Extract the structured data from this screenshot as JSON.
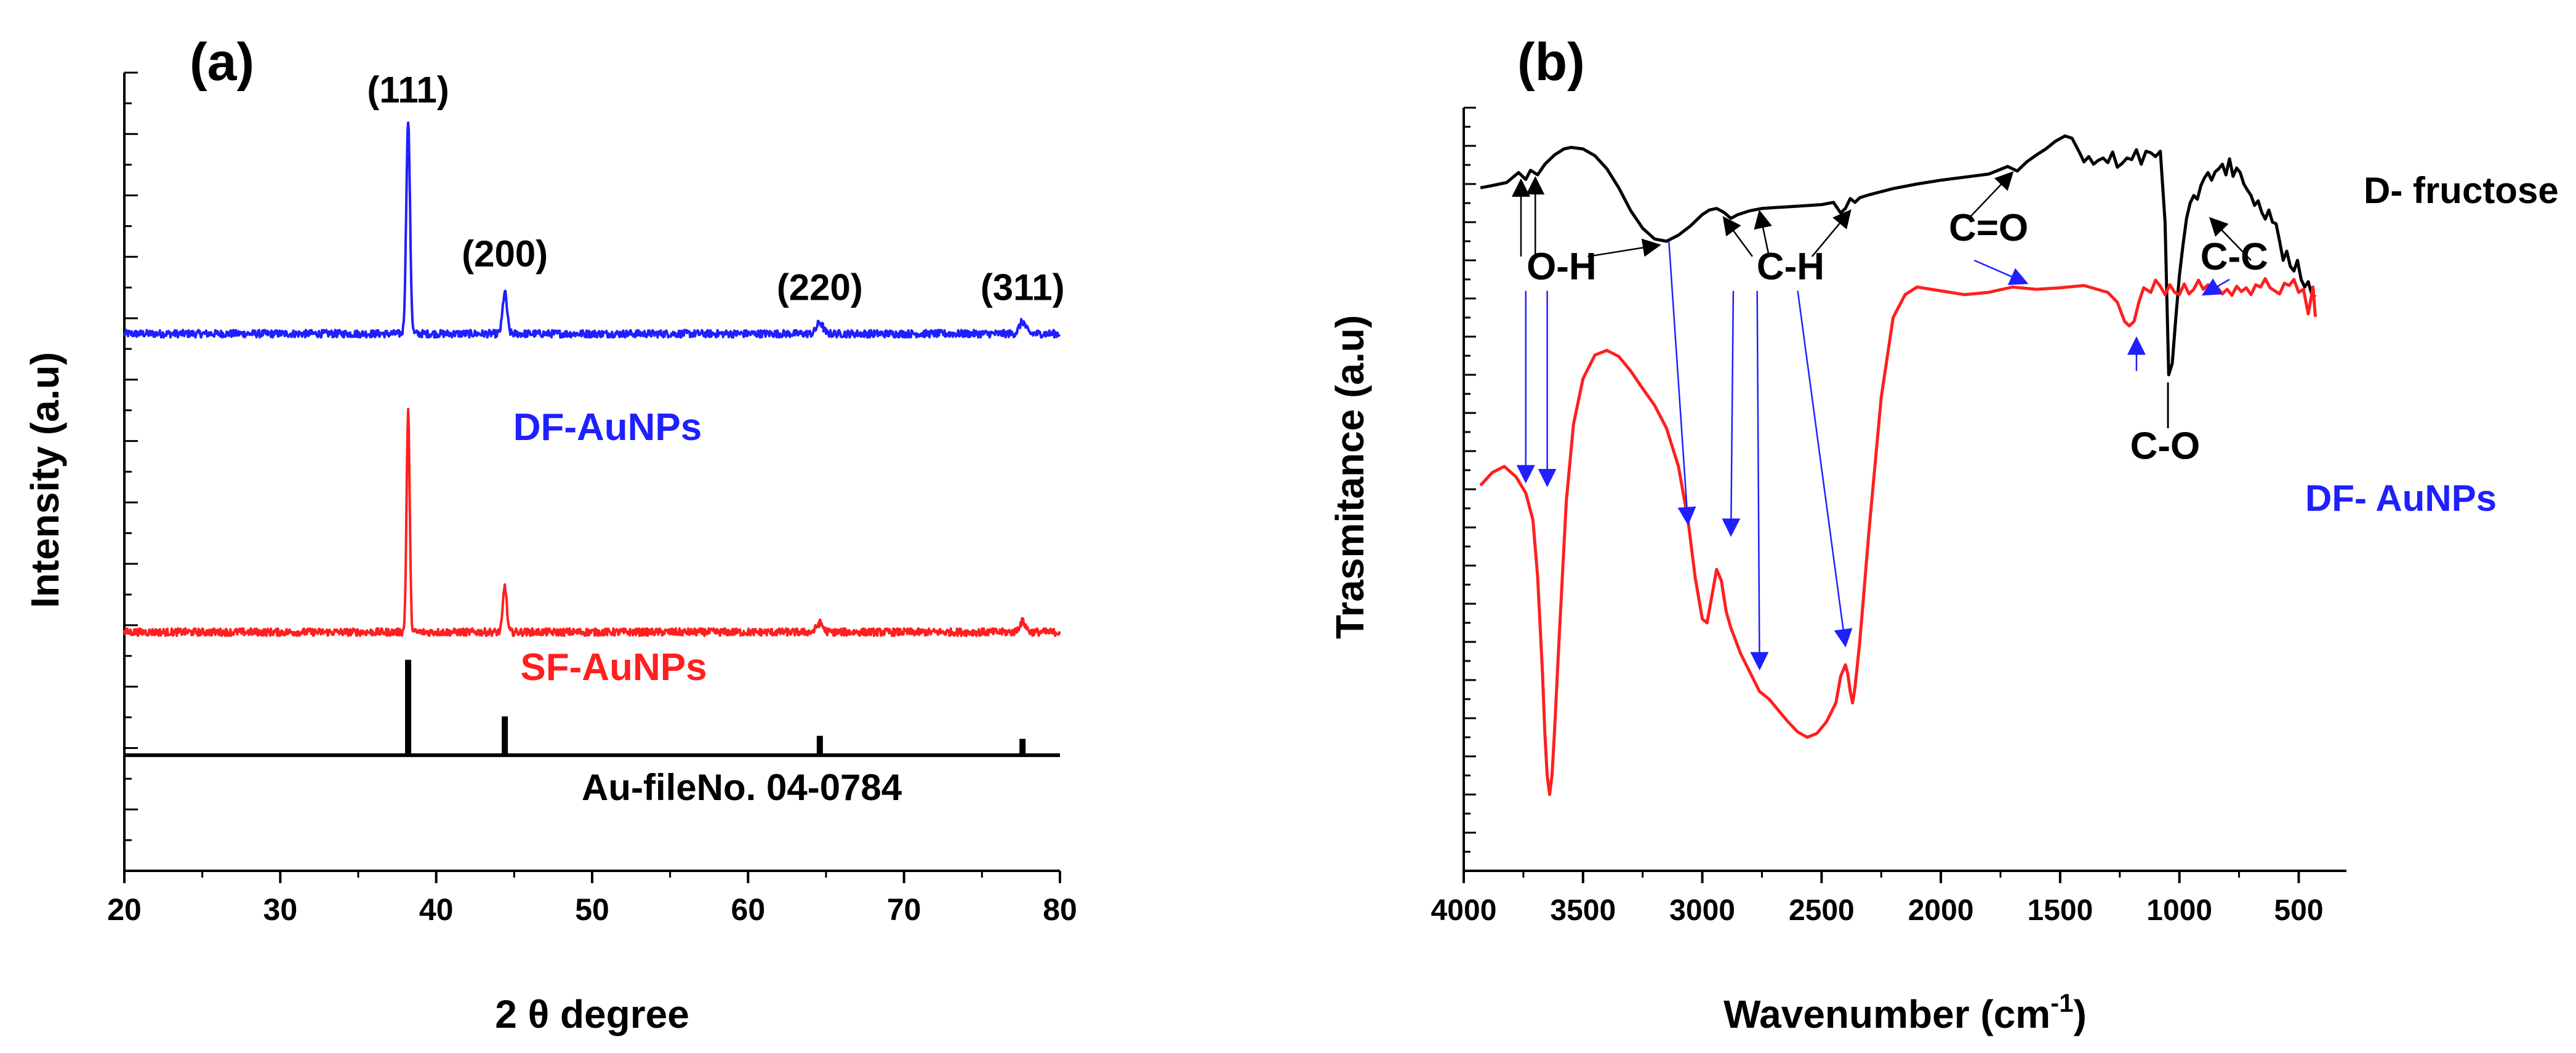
{
  "chart_data": [
    {
      "type": "line",
      "panel_label": "(a)",
      "xlabel": "2 θ degree",
      "ylabel": "Intensity (a.u)",
      "xlim": [
        20,
        80
      ],
      "ylim": [
        -3.2,
        7.5
      ],
      "x_ticks": [
        20,
        30,
        40,
        50,
        60,
        70,
        80
      ],
      "series": [
        {
          "name": "DF-AuNPs",
          "color": "#1f1fff",
          "label_text": "DF-AuNPs",
          "baseline": 4.0,
          "noise": 0.05,
          "peaks": [
            [
              38.2,
              2.85,
              0.12
            ],
            [
              44.4,
              0.55,
              0.14
            ],
            [
              64.6,
              0.15,
              0.2
            ],
            [
              77.6,
              0.16,
              0.2
            ]
          ]
        },
        {
          "name": "SF-AuNPs",
          "color": "#ff1f1f",
          "label_text": "SF-AuNPs",
          "baseline": 0.0,
          "noise": 0.05,
          "peaks": [
            [
              38.2,
              2.95,
              0.1
            ],
            [
              44.4,
              0.62,
              0.12
            ],
            [
              64.6,
              0.12,
              0.2
            ],
            [
              77.6,
              0.14,
              0.2
            ]
          ]
        }
      ],
      "reference": {
        "name": "Au-fileNo. 04-0784",
        "color": "#000000",
        "baseline": -1.65,
        "positions": [
          38.2,
          44.4,
          64.6,
          77.6
        ],
        "heights": [
          1.28,
          0.52,
          0.26,
          0.22
        ]
      },
      "peak_labels": [
        {
          "text": "(111)",
          "x": 38.2,
          "y": 7.1
        },
        {
          "text": "(200)",
          "x": 44.4,
          "y": 4.9
        },
        {
          "text": "(220)",
          "x": 64.6,
          "y": 4.45
        },
        {
          "text": "(311)",
          "x": 77.6,
          "y": 4.45
        }
      ]
    },
    {
      "type": "line",
      "panel_label": "(b)",
      "xlabel": "Wavenumber (cm",
      "xlabel_sup": "-1",
      "xlabel_end": ")",
      "ylabel": "Trasmitance (a.u)",
      "xlim": [
        4000,
        300
      ],
      "x_reversed": true,
      "ylim": [
        0,
        100
      ],
      "x_ticks": [
        4000,
        3500,
        3000,
        2500,
        2000,
        1500,
        1000,
        500
      ],
      "series": [
        {
          "name": "D- fructose",
          "color": "#000000",
          "x": [
            3930,
            3880,
            3820,
            3770,
            3740,
            3720,
            3690,
            3660,
            3620,
            3580,
            3550,
            3500,
            3450,
            3400,
            3350,
            3300,
            3250,
            3200,
            3150,
            3100,
            3050,
            3000,
            2970,
            2940,
            2910,
            2880,
            2850,
            2800,
            2750,
            2700,
            2650,
            2600,
            2550,
            2500,
            2450,
            2420,
            2400,
            2380,
            2360,
            2340,
            2300,
            2200,
            2100,
            2000,
            1900,
            1800,
            1720,
            1680,
            1640,
            1600,
            1560,
            1520,
            1480,
            1450,
            1420,
            1400,
            1380,
            1360,
            1340,
            1320,
            1300,
            1280,
            1260,
            1240,
            1220,
            1200,
            1180,
            1160,
            1140,
            1120,
            1100,
            1080,
            1060,
            1045,
            1030,
            1015,
            1000,
            985,
            970,
            955,
            940,
            925,
            910,
            895,
            880,
            865,
            850,
            835,
            820,
            805,
            790,
            775,
            760,
            745,
            730,
            715,
            700,
            685,
            670,
            655,
            640,
            625,
            610,
            595,
            580,
            565,
            550,
            535,
            520,
            505,
            490,
            475,
            460,
            445,
            430
          ],
          "y": [
            89.5,
            89.8,
            90.2,
            91.5,
            90.6,
            91.8,
            91.2,
            92.6,
            93.8,
            94.6,
            94.8,
            94.6,
            93.7,
            92.0,
            89.5,
            86.5,
            84.2,
            82.8,
            82.5,
            83.3,
            84.5,
            86.0,
            86.6,
            86.8,
            86.3,
            85.5,
            86.0,
            86.5,
            86.8,
            86.9,
            87.0,
            87.1,
            87.2,
            87.3,
            87.6,
            86.2,
            86.8,
            88.1,
            87.6,
            88.2,
            88.6,
            89.4,
            90.0,
            90.5,
            90.9,
            91.3,
            92.3,
            91.7,
            92.9,
            93.8,
            94.6,
            95.6,
            96.3,
            96.0,
            94.2,
            92.9,
            93.6,
            92.6,
            93.1,
            93.4,
            92.8,
            94.2,
            92.2,
            92.7,
            93.4,
            93.2,
            94.5,
            92.6,
            94.3,
            94.1,
            93.6,
            94.3,
            85.0,
            65.0,
            66.5,
            72.5,
            78.0,
            82.0,
            85.5,
            87.5,
            88.5,
            88.0,
            89.8,
            90.8,
            91.5,
            90.5,
            91.6,
            92.0,
            92.6,
            91.2,
            93.3,
            91.0,
            92.1,
            91.5,
            90.0,
            89.2,
            88.5,
            87.2,
            87.8,
            86.3,
            85.4,
            86.6,
            85.0,
            84.8,
            82.5,
            80.0,
            81.2,
            79.2,
            78.6,
            80.0,
            77.5,
            76.5,
            77.2,
            75.5,
            75.2
          ],
          "label_text": "D- fructose"
        },
        {
          "name": "DF- AuNPs",
          "color": "#ff1f1f",
          "x": [
            3930,
            3880,
            3830,
            3780,
            3740,
            3710,
            3690,
            3670,
            3660,
            3650,
            3640,
            3630,
            3620,
            3600,
            3570,
            3540,
            3500,
            3450,
            3400,
            3350,
            3300,
            3250,
            3200,
            3150,
            3100,
            3060,
            3030,
            3000,
            2980,
            2960,
            2940,
            2920,
            2900,
            2880,
            2860,
            2840,
            2800,
            2760,
            2720,
            2680,
            2640,
            2600,
            2560,
            2520,
            2480,
            2440,
            2420,
            2400,
            2390,
            2380,
            2370,
            2360,
            2340,
            2300,
            2250,
            2200,
            2150,
            2100,
            2000,
            1900,
            1800,
            1700,
            1600,
            1500,
            1400,
            1300,
            1260,
            1230,
            1210,
            1190,
            1170,
            1150,
            1120,
            1100,
            1080,
            1060,
            1040,
            1020,
            1000,
            980,
            960,
            940,
            920,
            900,
            880,
            860,
            840,
            820,
            800,
            780,
            760,
            740,
            720,
            700,
            680,
            660,
            640,
            620,
            600,
            580,
            560,
            540,
            520,
            500,
            480,
            460,
            440,
            430
          ],
          "y": [
            50.5,
            52.2,
            53.0,
            51.6,
            49.5,
            46.0,
            38.5,
            26.0,
            18.0,
            12.5,
            10.0,
            12.5,
            18.0,
            30.5,
            48.5,
            58.5,
            64.5,
            67.6,
            68.2,
            67.4,
            65.5,
            63.2,
            61.0,
            58.0,
            53.0,
            46.0,
            38.5,
            33.0,
            32.5,
            36.0,
            39.5,
            38.0,
            34.0,
            31.8,
            30.2,
            28.5,
            26.0,
            23.5,
            22.5,
            21.0,
            19.5,
            18.2,
            17.5,
            18.0,
            19.5,
            22.0,
            25.5,
            27.0,
            25.8,
            23.5,
            22.0,
            24.0,
            30.0,
            45.0,
            62.0,
            72.5,
            75.5,
            76.5,
            76.0,
            75.5,
            75.8,
            76.5,
            76.2,
            76.4,
            76.7,
            75.8,
            74.5,
            72.0,
            71.4,
            72.0,
            74.5,
            76.4,
            75.8,
            77.4,
            76.6,
            75.5,
            76.8,
            75.8,
            75.5,
            76.9,
            75.6,
            76.2,
            77.4,
            76.2,
            76.8,
            75.8,
            76.4,
            75.6,
            76.2,
            75.4,
            76.6,
            75.9,
            76.4,
            75.5,
            76.8,
            76.5,
            77.6,
            76.4,
            76.0,
            75.6,
            77.0,
            76.7,
            77.5,
            75.8,
            76.2,
            73.0,
            76.5,
            72.6
          ],
          "label_text": "DF- AuNPs",
          "label_color": "#1f1fff"
        }
      ],
      "annotations": [
        {
          "text": "O-H",
          "x": 3590,
          "y": 77.5
        },
        {
          "text": "C-H",
          "x": 2630,
          "y": 77.5
        },
        {
          "text": "C=O",
          "x": 1800,
          "y": 82.6
        },
        {
          "text": "C-C",
          "x": 770,
          "y": 78.8
        },
        {
          "text": "C-O",
          "x": 1060,
          "y": 54.0
        }
      ]
    }
  ]
}
